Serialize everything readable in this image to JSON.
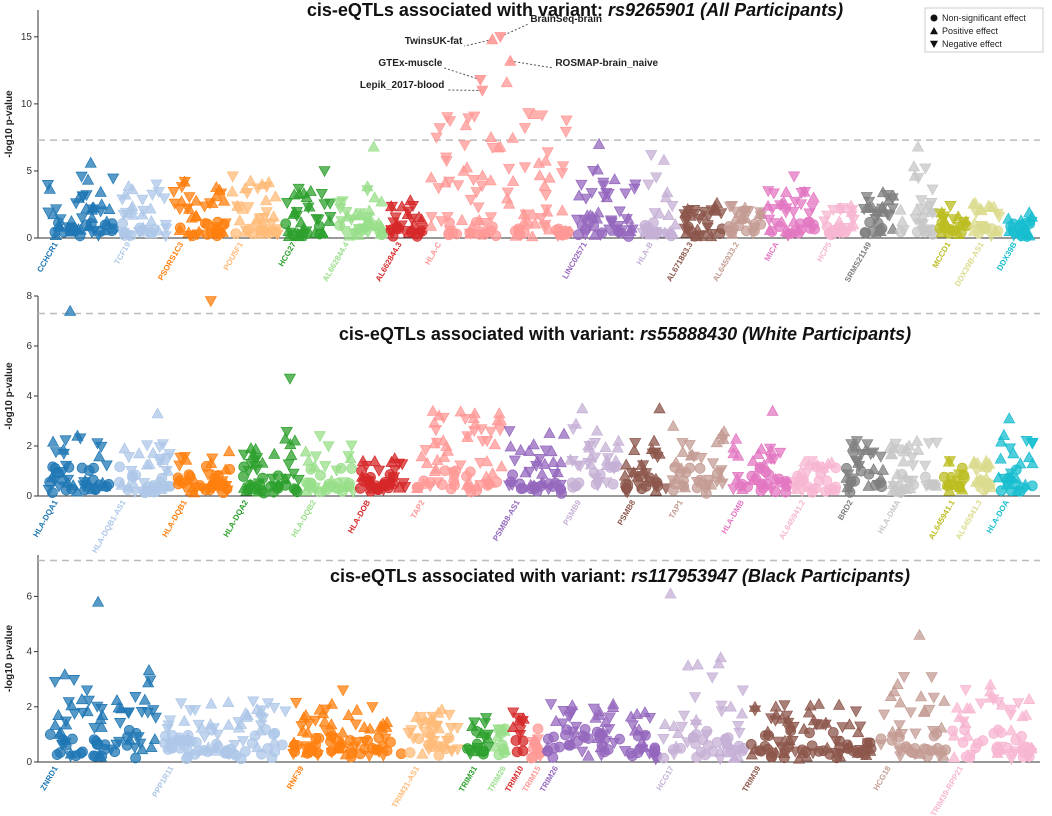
{
  "chart_data": [
    {
      "type": "scatter",
      "title_prefix": "cis-eQTLs associated with variant: ",
      "title_variant": "rs9265901 (All Participants)",
      "ylabel": "-log10 p-value",
      "ylim": [
        0,
        17
      ],
      "yticks": [
        0,
        5,
        10,
        15
      ],
      "threshold": 7.3,
      "genes": [
        {
          "label": "CCHCR1",
          "color": "#1f77b4",
          "n": 55,
          "spread": 2.5,
          "max": 5.6
        },
        {
          "label": "TCF19",
          "color": "#aec7e8",
          "n": 40,
          "spread": 2.2,
          "max": 4.0
        },
        {
          "label": "PSORS1C3",
          "color": "#ff7f0e",
          "n": 45,
          "spread": 2.4,
          "max": 4.2
        },
        {
          "label": "POU5F1",
          "color": "#ffbb78",
          "n": 40,
          "spread": 2.4,
          "max": 4.6
        },
        {
          "label": "HCG27",
          "color": "#2ca02c",
          "n": 40,
          "spread": 2.0,
          "max": 5.0
        },
        {
          "label": "AL662844.4",
          "color": "#98df8a",
          "n": 40,
          "spread": 2.0,
          "max": 6.8
        },
        {
          "label": "AL662844.3",
          "color": "#d62728",
          "n": 30,
          "spread": 1.8,
          "max": 2.8
        },
        {
          "label": "HLA-C",
          "color": "#ff9896",
          "n": 110,
          "spread": 5.0,
          "max": 11.6
        },
        {
          "label": "LINC02571",
          "color": "#9467bd",
          "n": 50,
          "spread": 3.0,
          "max": 7.0
        },
        {
          "label": "HLA-B",
          "color": "#c5b0d5",
          "n": 30,
          "spread": 3.0,
          "max": 6.2
        },
        {
          "label": "AL671883.3",
          "color": "#8c564b",
          "n": 35,
          "spread": 1.6,
          "max": 2.6
        },
        {
          "label": "AL645933.2",
          "color": "#c49c94",
          "n": 30,
          "spread": 1.5,
          "max": 2.4
        },
        {
          "label": "MICA",
          "color": "#e377c2",
          "n": 40,
          "spread": 1.8,
          "max": 4.6
        },
        {
          "label": "HCP5",
          "color": "#f7b6d2",
          "n": 30,
          "spread": 1.6,
          "max": 2.4
        },
        {
          "label": "SRMS21149",
          "color": "#7f7f7f",
          "n": 30,
          "spread": 2.0,
          "max": 3.4
        },
        {
          "label": "",
          "color": "#c7c7c7",
          "n": 30,
          "spread": 3.0,
          "max": 6.8
        },
        {
          "label": "MCCD1",
          "color": "#bcbd22",
          "n": 25,
          "spread": 1.5,
          "max": 2.4
        },
        {
          "label": "DDX39B-AS1",
          "color": "#dbdb8d",
          "n": 25,
          "spread": 1.4,
          "max": 2.6
        },
        {
          "label": "DDX39B",
          "color": "#17becf",
          "n": 25,
          "spread": 1.2,
          "max": 1.9
        }
      ],
      "annotations": [
        {
          "text": "BrainSeq-brain",
          "gene_index": 7,
          "value": 15.0
        },
        {
          "text": "TwinsUK-fat",
          "gene_index": 7,
          "value": 14.8
        },
        {
          "text": "GTEx-muscle",
          "gene_index": 7,
          "value": 11.8
        },
        {
          "text": "ROSMAP-brain_naive",
          "gene_index": 7,
          "value": 13.2
        },
        {
          "text": "Lepik_2017-blood",
          "gene_index": 7,
          "value": 11.0
        }
      ]
    },
    {
      "type": "scatter",
      "title_prefix": "cis-eQTLs associated with variant: ",
      "title_variant": "rs55888430 (White Participants)",
      "ylabel": "-log10 p-value",
      "ylim": [
        0,
        8
      ],
      "yticks": [
        0,
        2,
        4,
        6,
        8
      ],
      "threshold": 7.3,
      "genes": [
        {
          "label": "HLA-DQA1",
          "color": "#1f77b4",
          "n": 50,
          "spread": 1.2,
          "max": 7.4
        },
        {
          "label": "HLA-DQB1-AS1",
          "color": "#aec7e8",
          "n": 45,
          "spread": 1.0,
          "max": 3.3
        },
        {
          "label": "HLA-DQB1",
          "color": "#ff7f0e",
          "n": 45,
          "spread": 0.8,
          "max": 7.8
        },
        {
          "label": "HLA-DQA2",
          "color": "#2ca02c",
          "n": 50,
          "spread": 1.2,
          "max": 4.7
        },
        {
          "label": "HLA-DQB2",
          "color": "#98df8a",
          "n": 40,
          "spread": 1.0,
          "max": 2.4
        },
        {
          "label": "HLA-DOB",
          "color": "#d62728",
          "n": 40,
          "spread": 0.9,
          "max": 1.5
        },
        {
          "label": "TAP2",
          "color": "#ff9896",
          "n": 70,
          "spread": 2.0,
          "max": 3.4
        },
        {
          "label": "PSMB8-AS1",
          "color": "#9467bd",
          "n": 45,
          "spread": 1.3,
          "max": 2.6
        },
        {
          "label": "PSMB9",
          "color": "#c5b0d5",
          "n": 40,
          "spread": 1.5,
          "max": 3.5
        },
        {
          "label": "PSMB8",
          "color": "#8c564b",
          "n": 35,
          "spread": 1.0,
          "max": 3.5
        },
        {
          "label": "TAP1",
          "color": "#c49c94",
          "n": 45,
          "spread": 1.4,
          "max": 2.8
        },
        {
          "label": "HLA-DMB",
          "color": "#e377c2",
          "n": 45,
          "spread": 1.0,
          "max": 3.4
        },
        {
          "label": "AL645941.2",
          "color": "#f7b6d2",
          "n": 35,
          "spread": 0.9,
          "max": 1.4
        },
        {
          "label": "BRD2",
          "color": "#7f7f7f",
          "n": 35,
          "spread": 1.2,
          "max": 2.2
        },
        {
          "label": "HLA-DMA",
          "color": "#c7c7c7",
          "n": 40,
          "spread": 1.1,
          "max": 2.2
        },
        {
          "label": "AL645941.1",
          "color": "#bcbd22",
          "n": 20,
          "spread": 0.9,
          "max": 1.4
        },
        {
          "label": "AL645941.3",
          "color": "#dbdb8d",
          "n": 20,
          "spread": 0.9,
          "max": 1.4
        },
        {
          "label": "HLA-DOA",
          "color": "#17becf",
          "n": 30,
          "spread": 1.2,
          "max": 3.1
        }
      ],
      "annotations": []
    },
    {
      "type": "scatter",
      "title_prefix": "cis-eQTLs associated with variant: ",
      "title_variant": "rs117953947 (Black Participants)",
      "ylabel": "-log10 p-value",
      "ylim": [
        0,
        7.5
      ],
      "yticks": [
        0,
        2,
        4,
        6
      ],
      "threshold": 7.3,
      "genes": [
        {
          "label": "ZNRD1",
          "color": "#1f77b4",
          "n": 80,
          "spread": 2.0,
          "max": 5.8
        },
        {
          "label": "PPP1R11",
          "color": "#aec7e8",
          "n": 90,
          "spread": 1.4,
          "max": 2.2
        },
        {
          "label": "RNF39",
          "color": "#ff7f0e",
          "n": 80,
          "spread": 1.0,
          "max": 2.6
        },
        {
          "label": "TRIM31-AS1",
          "color": "#ffbb78",
          "n": 40,
          "spread": 1.2,
          "max": 1.9
        },
        {
          "label": "TRIM31",
          "color": "#2ca02c",
          "n": 20,
          "spread": 1.0,
          "max": 1.6
        },
        {
          "label": "TRIM26",
          "color": "#98df8a",
          "n": 12,
          "spread": 0.8,
          "max": 1.2
        },
        {
          "label": "TRIM10",
          "color": "#d62728",
          "n": 12,
          "spread": 0.9,
          "max": 1.8
        },
        {
          "label": "TRIM15",
          "color": "#ff9896",
          "n": 12,
          "spread": 0.8,
          "max": 1.2
        },
        {
          "label": "TRIM26",
          "color": "#9467bd",
          "n": 80,
          "spread": 1.3,
          "max": 2.1
        },
        {
          "label": "HCG17",
          "color": "#c5b0d5",
          "n": 60,
          "spread": 2.0,
          "max": 6.1
        },
        {
          "label": "TRIM39",
          "color": "#8c564b",
          "n": 90,
          "spread": 1.1,
          "max": 2.1
        },
        {
          "label": "HCG18",
          "color": "#c49c94",
          "n": 50,
          "spread": 1.6,
          "max": 4.6
        },
        {
          "label": "TRIM39-RPP21",
          "color": "#f7b6d2",
          "n": 60,
          "spread": 1.4,
          "max": 2.8
        }
      ],
      "annotations": []
    }
  ],
  "legend": {
    "items": [
      {
        "label": "Non-significant effect",
        "shape": "circle"
      },
      {
        "label": "Positive effect",
        "shape": "triangle-up"
      },
      {
        "label": "Negative effect",
        "shape": "triangle-down"
      }
    ]
  }
}
